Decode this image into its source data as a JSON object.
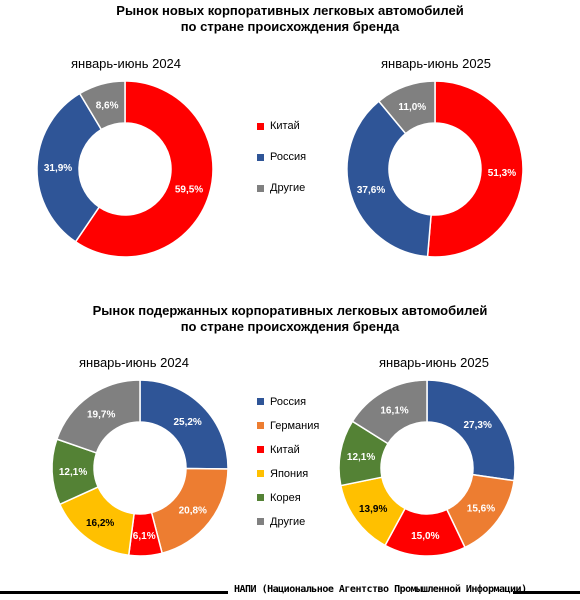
{
  "sections": [
    {
      "title_line1": "Рынок новых корпоративных легковых автомобилей",
      "title_line2": "по стране происхождения бренда"
    },
    {
      "title_line1": "Рынок подержанных  корпоративных легковых автомобилей",
      "title_line2": "по стране происхождения бренда"
    }
  ],
  "legends": [
    {
      "items": [
        {
          "label": "Китай",
          "color": "#ff0000"
        },
        {
          "label": "Россия",
          "color": "#2f5597"
        },
        {
          "label": "Другие",
          "color": "#808080"
        }
      ]
    },
    {
      "items": [
        {
          "label": "Россия",
          "color": "#2f5597"
        },
        {
          "label": "Германия",
          "color": "#ed7d31"
        },
        {
          "label": "Китай",
          "color": "#ff0000"
        },
        {
          "label": "Япония",
          "color": "#ffc000"
        },
        {
          "label": "Корея",
          "color": "#548235"
        },
        {
          "label": "Другие",
          "color": "#808080"
        }
      ]
    }
  ],
  "chart_data": [
    {
      "type": "pie",
      "title": "январь-июнь 2024",
      "categories": [
        "Китай",
        "Россия",
        "Другие"
      ],
      "values": [
        59.5,
        31.9,
        8.6
      ],
      "labels": [
        "59,5%",
        "31,9%",
        "8,6%"
      ],
      "colors": [
        "#ff0000",
        "#2f5597",
        "#808080"
      ],
      "start_angle_deg": 0,
      "label_colors": [
        "#ffffff",
        "#ffffff",
        "#ffffff"
      ]
    },
    {
      "type": "pie",
      "title": "январь-июнь 2025",
      "categories": [
        "Китай",
        "Россия",
        "Другие"
      ],
      "values": [
        51.3,
        37.6,
        11.0
      ],
      "labels": [
        "51,3%",
        "37,6%",
        "11,0%"
      ],
      "colors": [
        "#ff0000",
        "#2f5597",
        "#808080"
      ],
      "start_angle_deg": 0,
      "label_colors": [
        "#ffffff",
        "#ffffff",
        "#ffffff"
      ]
    },
    {
      "type": "pie",
      "title": "январь-июнь 2024",
      "categories": [
        "Россия",
        "Германия",
        "Китай",
        "Япония",
        "Корея",
        "Другие"
      ],
      "values": [
        25.2,
        20.8,
        6.1,
        16.2,
        12.1,
        19.7
      ],
      "labels": [
        "25,2%",
        "20,8%",
        "6,1%",
        "16,2%",
        "12,1%",
        "19,7%"
      ],
      "colors": [
        "#2f5597",
        "#ed7d31",
        "#ff0000",
        "#ffc000",
        "#548235",
        "#808080"
      ],
      "start_angle_deg": 0,
      "label_colors": [
        "#ffffff",
        "#ffffff",
        "#ffffff",
        "#000000",
        "#ffffff",
        "#ffffff"
      ]
    },
    {
      "type": "pie",
      "title": "январь-июнь 2025",
      "categories": [
        "Россия",
        "Германия",
        "Китай",
        "Япония",
        "Корея",
        "Другие"
      ],
      "values": [
        27.3,
        15.6,
        15.0,
        13.9,
        12.1,
        16.1
      ],
      "labels": [
        "27,3%",
        "15,6%",
        "15,0%",
        "13,9%",
        "12,1%",
        "16,1%"
      ],
      "colors": [
        "#2f5597",
        "#ed7d31",
        "#ff0000",
        "#ffc000",
        "#548235",
        "#808080"
      ],
      "start_angle_deg": 0,
      "label_colors": [
        "#ffffff",
        "#ffffff",
        "#ffffff",
        "#000000",
        "#ffffff",
        "#ffffff"
      ]
    }
  ],
  "footer": {
    "text": "НАПИ (Национальное Агентство Промышленной Информации)"
  }
}
